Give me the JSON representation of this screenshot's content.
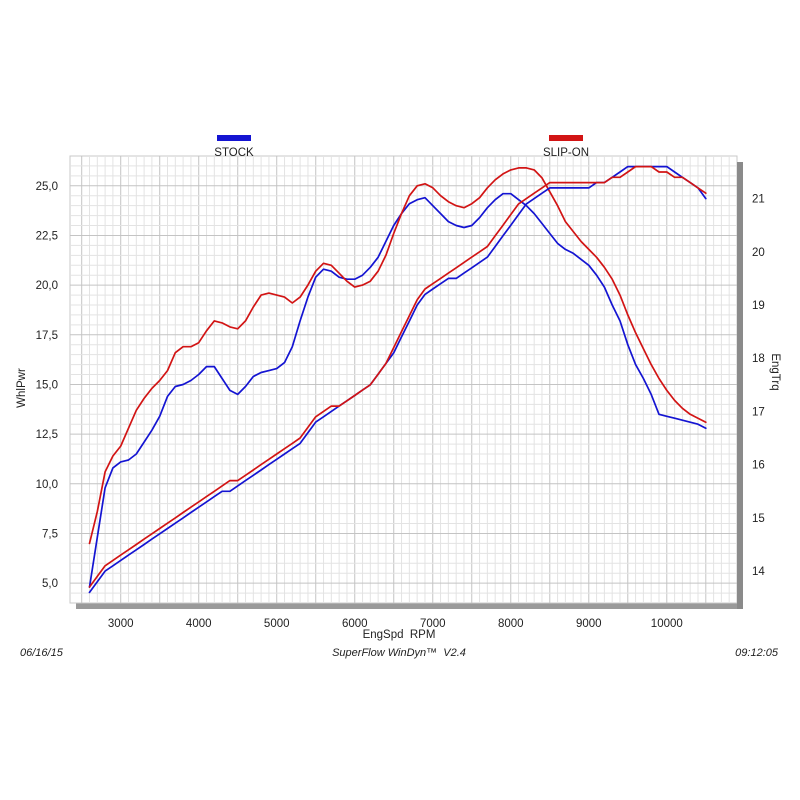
{
  "chart_data": {
    "type": "line",
    "xlabel": "EngSpd  RPM",
    "ylabel": "WhlPwr",
    "y2label": "EngTrq",
    "xlim": [
      2350,
      10900
    ],
    "ylim": [
      4.0,
      26.5
    ],
    "y2lim": [
      13.4,
      21.8
    ],
    "x_ticks": [
      "3000",
      "4000",
      "5000",
      "6000",
      "7000",
      "8000",
      "9000",
      "10000"
    ],
    "y_ticks": [
      "5,0",
      "7,5",
      "10,0",
      "12,5",
      "15,0",
      "17,5",
      "20,0",
      "22,5",
      "25,0"
    ],
    "y2_ticks": [
      "14",
      "15",
      "16",
      "17",
      "18",
      "19",
      "20",
      "21"
    ],
    "grid": true,
    "legend": [
      {
        "name": "STOCK",
        "color": "#1414d2"
      },
      {
        "name": "SLIP-ON",
        "color": "#d21414"
      }
    ],
    "series": [
      {
        "name": "STOCK",
        "measure": "WhlPwr",
        "axis": "left",
        "color": "#1414d2",
        "x": [
          2600,
          2700,
          2800,
          2900,
          3000,
          3100,
          3200,
          3300,
          3400,
          3500,
          3600,
          3700,
          3800,
          3900,
          4000,
          4100,
          4200,
          4300,
          4400,
          4500,
          4600,
          4700,
          4800,
          4900,
          5000,
          5100,
          5200,
          5300,
          5400,
          5500,
          5600,
          5700,
          5800,
          5900,
          6000,
          6100,
          6200,
          6300,
          6400,
          6500,
          6600,
          6700,
          6800,
          6900,
          7000,
          7100,
          7200,
          7300,
          7400,
          7500,
          7600,
          7700,
          7800,
          7900,
          8000,
          8100,
          8200,
          8300,
          8400,
          8500,
          8600,
          8700,
          8800,
          8900,
          9000,
          9100,
          9200,
          9300,
          9400,
          9500,
          9600,
          9700,
          9800,
          9900,
          10000,
          10100,
          10200,
          10300,
          10400,
          10500
        ],
        "y": [
          4.8,
          7.3,
          9.8,
          10.8,
          11.1,
          11.2,
          11.5,
          12.1,
          12.7,
          13.4,
          14.4,
          14.9,
          15.0,
          15.2,
          15.5,
          15.9,
          15.9,
          15.3,
          14.7,
          14.5,
          14.9,
          15.4,
          15.6,
          15.7,
          15.8,
          16.1,
          16.9,
          18.2,
          19.4,
          20.4,
          20.8,
          20.7,
          20.4,
          20.3,
          20.3,
          20.5,
          20.9,
          21.4,
          22.2,
          23.0,
          23.6,
          24.1,
          24.3,
          24.4,
          24.0,
          23.6,
          23.2,
          23.0,
          22.9,
          23.0,
          23.4,
          23.9,
          24.3,
          24.6,
          24.6,
          24.3,
          24.0,
          23.6,
          23.1,
          22.6,
          22.1,
          21.8,
          21.6,
          21.3,
          21.0,
          20.5,
          19.9,
          19.0,
          18.2,
          17.0,
          16.0,
          15.3,
          14.5,
          13.5,
          13.4,
          13.3,
          13.2,
          13.1,
          13.0,
          12.8
        ],
        "y_note": "values read on the WhlPwr axis"
      },
      {
        "name": "SLIP-ON",
        "measure": "WhlPwr",
        "axis": "left",
        "color": "#d21414",
        "x": [
          2600,
          2700,
          2800,
          2900,
          3000,
          3100,
          3200,
          3300,
          3400,
          3500,
          3600,
          3700,
          3800,
          3900,
          4000,
          4100,
          4200,
          4300,
          4400,
          4500,
          4600,
          4700,
          4800,
          4900,
          5000,
          5100,
          5200,
          5300,
          5400,
          5500,
          5600,
          5700,
          5800,
          5900,
          6000,
          6100,
          6200,
          6300,
          6400,
          6500,
          6600,
          6700,
          6800,
          6900,
          7000,
          7100,
          7200,
          7300,
          7400,
          7500,
          7600,
          7700,
          7800,
          7900,
          8000,
          8100,
          8200,
          8300,
          8400,
          8500,
          8600,
          8700,
          8800,
          8900,
          9000,
          9100,
          9200,
          9300,
          9400,
          9500,
          9600,
          9700,
          9800,
          9900,
          10000,
          10100,
          10200,
          10300,
          10400,
          10500
        ],
        "y": [
          7.0,
          8.6,
          10.6,
          11.4,
          11.9,
          12.8,
          13.7,
          14.3,
          14.8,
          15.2,
          15.7,
          16.6,
          16.9,
          16.9,
          17.1,
          17.7,
          18.2,
          18.1,
          17.9,
          17.8,
          18.2,
          18.9,
          19.5,
          19.6,
          19.5,
          19.4,
          19.1,
          19.4,
          20.0,
          20.7,
          21.1,
          21.0,
          20.6,
          20.2,
          19.9,
          20.0,
          20.2,
          20.7,
          21.5,
          22.6,
          23.6,
          24.5,
          25.0,
          25.1,
          24.9,
          24.5,
          24.2,
          24.0,
          23.9,
          24.1,
          24.4,
          24.9,
          25.3,
          25.6,
          25.8,
          25.9,
          25.9,
          25.8,
          25.4,
          24.7,
          24.0,
          23.2,
          22.7,
          22.2,
          21.8,
          21.4,
          20.9,
          20.3,
          19.5,
          18.5,
          17.6,
          16.8,
          16.0,
          15.3,
          14.7,
          14.2,
          13.8,
          13.5,
          13.3,
          13.1
        ],
        "y_note": "values read on the WhlPwr axis"
      },
      {
        "name": "STOCK",
        "measure": "EngTrq",
        "axis": "right",
        "color": "#1414d2",
        "x": [
          2600,
          2700,
          2800,
          2900,
          3000,
          3100,
          3200,
          3300,
          3400,
          3500,
          3600,
          3700,
          3800,
          3900,
          4000,
          4100,
          4200,
          4300,
          4400,
          4500,
          4600,
          4700,
          4800,
          4900,
          5000,
          5100,
          5200,
          5300,
          5400,
          5500,
          5600,
          5700,
          5800,
          5900,
          6000,
          6100,
          6200,
          6300,
          6400,
          6500,
          6600,
          6700,
          6800,
          6900,
          7000,
          7100,
          7200,
          7300,
          7400,
          7500,
          7600,
          7700,
          7800,
          7900,
          8000,
          8100,
          8200,
          8300,
          8400,
          8500,
          8600,
          8700,
          8800,
          8900,
          9000,
          9100,
          9200,
          9300,
          9400,
          9500,
          9600,
          9700,
          9800,
          9900,
          10000,
          10100,
          10200,
          10300,
          10400,
          10500
        ],
        "y": [
          13.6,
          13.8,
          14.0,
          14.1,
          14.2,
          14.3,
          14.4,
          14.5,
          14.6,
          14.7,
          14.8,
          14.9,
          15.0,
          15.1,
          15.2,
          15.3,
          15.4,
          15.5,
          15.5,
          15.6,
          15.7,
          15.8,
          15.9,
          16.0,
          16.1,
          16.2,
          16.3,
          16.4,
          16.6,
          16.8,
          16.9,
          17.0,
          17.1,
          17.2,
          17.3,
          17.4,
          17.5,
          17.7,
          17.9,
          18.1,
          18.4,
          18.7,
          19.0,
          19.2,
          19.3,
          19.4,
          19.5,
          19.5,
          19.6,
          19.7,
          19.8,
          19.9,
          20.1,
          20.3,
          20.5,
          20.7,
          20.9,
          21.0,
          21.1,
          21.2,
          21.2,
          21.2,
          21.2,
          21.2,
          21.2,
          21.3,
          21.3,
          21.4,
          21.5,
          21.6,
          21.6,
          21.6,
          21.6,
          21.6,
          21.6,
          21.5,
          21.4,
          21.3,
          21.2,
          21.0
        ],
        "y_note": "values read on the EngTrq axis"
      },
      {
        "name": "SLIP-ON",
        "measure": "EngTrq",
        "axis": "right",
        "color": "#d21414",
        "x": [
          2600,
          2700,
          2800,
          2900,
          3000,
          3100,
          3200,
          3300,
          3400,
          3500,
          3600,
          3700,
          3800,
          3900,
          4000,
          4100,
          4200,
          4300,
          4400,
          4500,
          4600,
          4700,
          4800,
          4900,
          5000,
          5100,
          5200,
          5300,
          5400,
          5500,
          5600,
          5700,
          5800,
          5900,
          6000,
          6100,
          6200,
          6300,
          6400,
          6500,
          6600,
          6700,
          6800,
          6900,
          7000,
          7100,
          7200,
          7300,
          7400,
          7500,
          7600,
          7700,
          7800,
          7900,
          8000,
          8100,
          8200,
          8300,
          8400,
          8500,
          8600,
          8700,
          8800,
          8900,
          9000,
          9100,
          9200,
          9300,
          9400,
          9500,
          9600,
          9700,
          9800,
          9900,
          10000,
          10100,
          10200,
          10300,
          10400,
          10500
        ],
        "y": [
          13.7,
          13.9,
          14.1,
          14.2,
          14.3,
          14.4,
          14.5,
          14.6,
          14.7,
          14.8,
          14.9,
          15.0,
          15.1,
          15.2,
          15.3,
          15.4,
          15.5,
          15.6,
          15.7,
          15.7,
          15.8,
          15.9,
          16.0,
          16.1,
          16.2,
          16.3,
          16.4,
          16.5,
          16.7,
          16.9,
          17.0,
          17.1,
          17.1,
          17.2,
          17.3,
          17.4,
          17.5,
          17.7,
          17.9,
          18.2,
          18.5,
          18.8,
          19.1,
          19.3,
          19.4,
          19.5,
          19.6,
          19.7,
          19.8,
          19.9,
          20.0,
          20.1,
          20.3,
          20.5,
          20.7,
          20.9,
          21.0,
          21.1,
          21.2,
          21.3,
          21.3,
          21.3,
          21.3,
          21.3,
          21.3,
          21.3,
          21.3,
          21.4,
          21.4,
          21.5,
          21.6,
          21.6,
          21.6,
          21.5,
          21.5,
          21.4,
          21.4,
          21.3,
          21.2,
          21.1
        ],
        "y_note": "values read on the EngTrq axis"
      }
    ]
  },
  "footer": {
    "date": "06/16/15",
    "software": "SuperFlow WinDyn™  V2.4",
    "time": "09:12:05"
  }
}
